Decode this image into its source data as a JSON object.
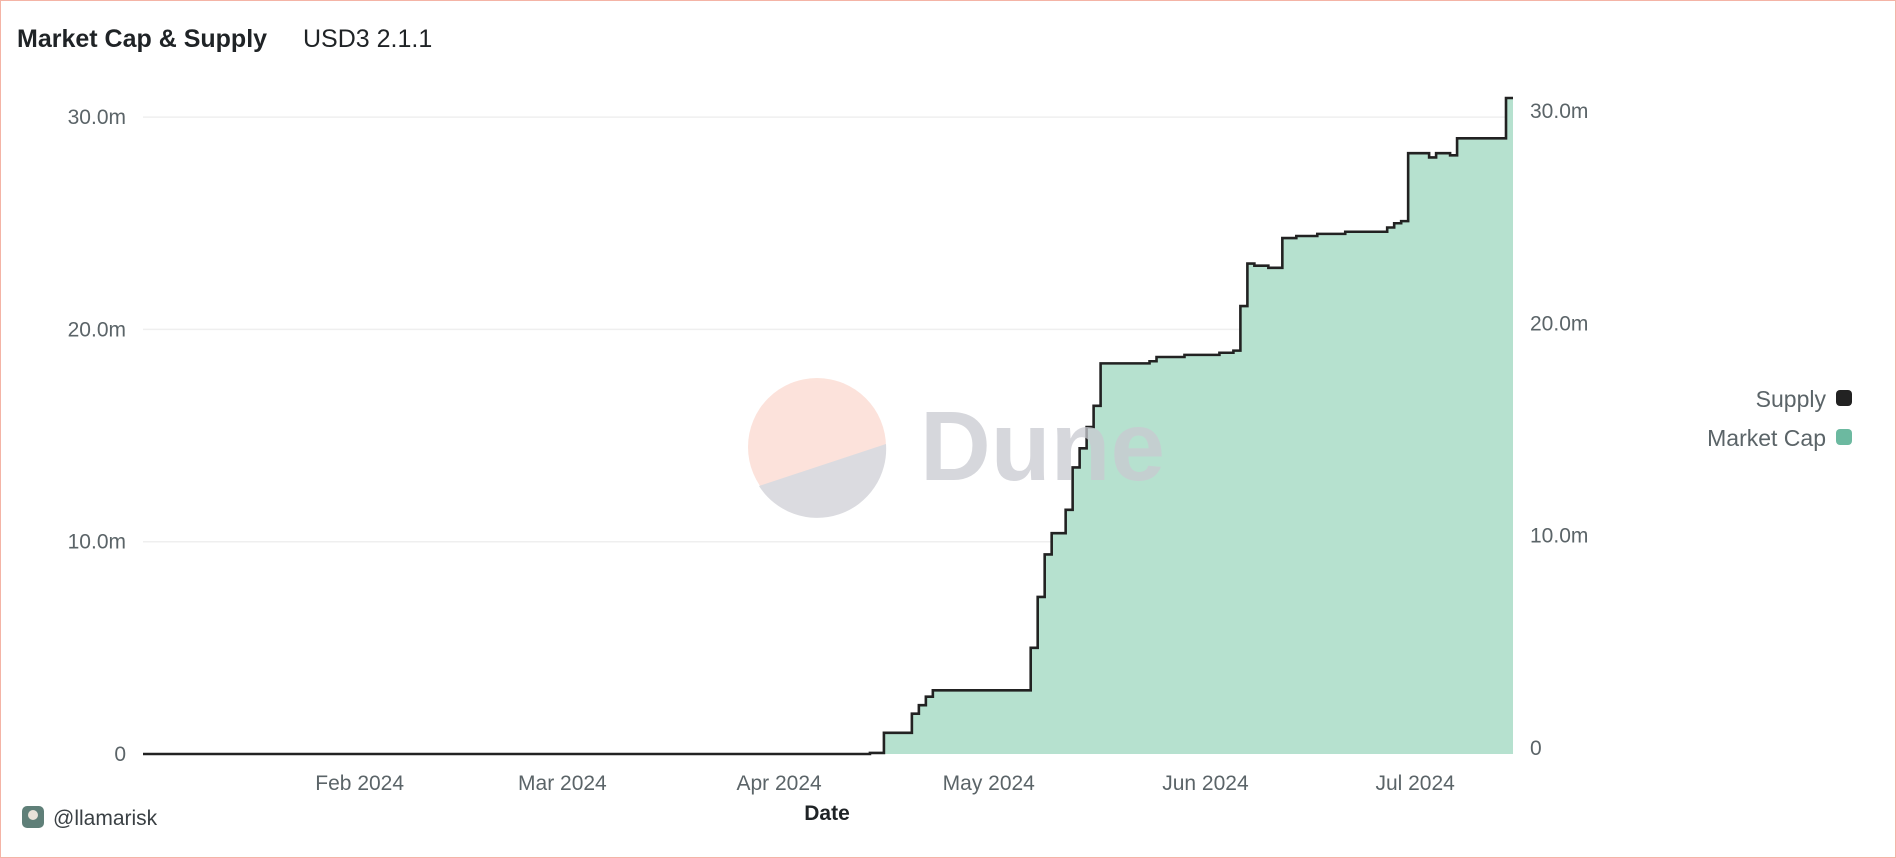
{
  "header": {
    "title": "Market Cap & Supply",
    "subtitle": "USD3 2.1.1"
  },
  "footer": {
    "author": "@llamarisk"
  },
  "watermark": {
    "text": "Dune"
  },
  "chart_data": {
    "type": "area",
    "xlabel": "Date",
    "ylabel": "",
    "x_domain": [
      "2024-01-01",
      "2024-07-15"
    ],
    "ylim": [
      0,
      32000000
    ],
    "grid": true,
    "legend_position": "right",
    "y_ticks": [
      "0",
      "10.0m",
      "20.0m",
      "30.0m"
    ],
    "y_tick_values": [
      0,
      10000000,
      20000000,
      30000000
    ],
    "y_right_ticks": [
      "0",
      "10.0m",
      "20.0m",
      "30.0m"
    ],
    "x_ticks": [
      "Feb 2024",
      "Mar 2024",
      "Apr 2024",
      "May 2024",
      "Jun 2024",
      "Jul 2024"
    ],
    "x_tick_dates": [
      "2024-02-01",
      "2024-03-01",
      "2024-04-01",
      "2024-05-01",
      "2024-06-01",
      "2024-07-01"
    ],
    "colors": {
      "supply": "#222222",
      "market_cap_fill": "#b6e1cf",
      "market_cap_legend": "#6cb9a0"
    },
    "series": [
      {
        "name": "Supply",
        "style": "step-line",
        "color": "#222222"
      },
      {
        "name": "Market Cap",
        "style": "step-area",
        "color": "#6cb9a0"
      }
    ],
    "dates": [
      "2024-01-01",
      "2024-04-14",
      "2024-04-16",
      "2024-04-20",
      "2024-04-21",
      "2024-04-22",
      "2024-04-23",
      "2024-05-07",
      "2024-05-08",
      "2024-05-09",
      "2024-05-10",
      "2024-05-12",
      "2024-05-13",
      "2024-05-14",
      "2024-05-15",
      "2024-05-16",
      "2024-05-17",
      "2024-05-24",
      "2024-05-25",
      "2024-05-29",
      "2024-06-03",
      "2024-06-05",
      "2024-06-06",
      "2024-06-07",
      "2024-06-08",
      "2024-06-10",
      "2024-06-12",
      "2024-06-14",
      "2024-06-17",
      "2024-06-21",
      "2024-06-27",
      "2024-06-28",
      "2024-06-29",
      "2024-06-30",
      "2024-07-03",
      "2024-07-04",
      "2024-07-06",
      "2024-07-07",
      "2024-07-14",
      "2024-07-15"
    ],
    "values": [
      0,
      50000,
      1000000,
      1900000,
      2300000,
      2700000,
      3000000,
      5000000,
      7400000,
      9400000,
      10400000,
      11500000,
      13500000,
      14400000,
      15400000,
      16400000,
      18400000,
      18500000,
      18700000,
      18800000,
      18900000,
      19000000,
      21100000,
      23100000,
      23000000,
      22900000,
      24300000,
      24400000,
      24500000,
      24600000,
      24800000,
      25000000,
      25100000,
      28300000,
      28100000,
      28300000,
      28200000,
      29000000,
      30900000,
      30900000
    ]
  }
}
